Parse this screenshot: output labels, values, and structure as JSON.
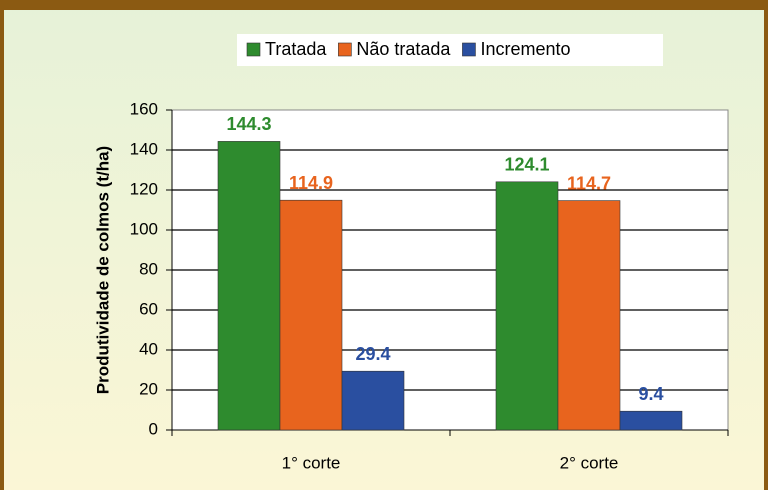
{
  "chart_data": {
    "type": "bar",
    "categories": [
      "1° corte",
      "2° corte"
    ],
    "series": [
      {
        "name": "Tratada",
        "color": "#2e8b2e",
        "values": [
          144.3,
          124.1
        ]
      },
      {
        "name": "Não tratada",
        "color": "#e8641e",
        "values": [
          114.9,
          114.7
        ]
      },
      {
        "name": "Incremento",
        "color": "#2a4fa0",
        "values": [
          29.4,
          9.4
        ]
      }
    ],
    "y_label": "Produtividade de colmos (t/ha)",
    "ylim": [
      0,
      160
    ],
    "yticks": [
      0,
      20,
      40,
      60,
      80,
      100,
      120,
      140,
      160
    ],
    "grid": true,
    "legend": "top"
  }
}
